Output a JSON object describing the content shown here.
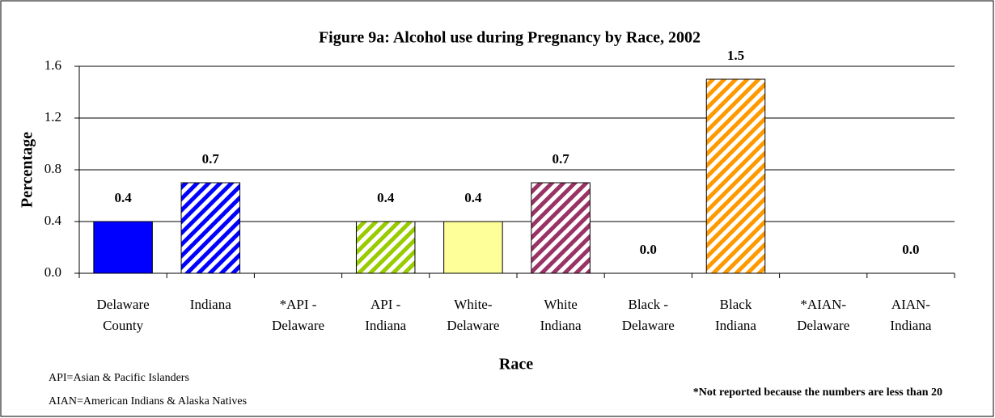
{
  "chart_data": {
    "type": "bar",
    "title": "Figure 9a:  Alcohol use during Pregnancy by Race, 2002",
    "x_label": "Race",
    "y_label": "Percentage",
    "categories": [
      [
        "Delaware",
        "County"
      ],
      [
        "Indiana"
      ],
      [
        "*API -",
        "Delaware"
      ],
      [
        "API  -",
        "Indiana"
      ],
      [
        "White-",
        "Delaware"
      ],
      [
        "White",
        "Indiana"
      ],
      [
        "Black -",
        "Delaware"
      ],
      [
        "Black",
        "Indiana"
      ],
      [
        "*AIAN-",
        "Delaware"
      ],
      [
        "AIAN-",
        "Indiana"
      ]
    ],
    "values": [
      0.4,
      0.7,
      null,
      0.4,
      0.4,
      0.7,
      0.0,
      1.5,
      null,
      0.0
    ],
    "value_labels": [
      "0.4",
      "0.7",
      null,
      "0.4",
      "0.4",
      "0.7",
      "0.0",
      "1.5",
      null,
      "0.0"
    ],
    "colors": [
      "#0000ff",
      "#0000ff",
      null,
      "#99cc00",
      "#ffff99",
      "#993366",
      null,
      "#ff9900",
      null,
      null
    ],
    "hatched": [
      false,
      true,
      false,
      true,
      false,
      true,
      false,
      true,
      false,
      false
    ],
    "ylim": [
      0,
      1.6
    ],
    "yticks": [
      {
        "value": 0,
        "label": "0.0"
      },
      0.4,
      0.8,
      1.2,
      1.6
    ],
    "grid": true,
    "notes": [
      "API=Asian & Pacific Islanders",
      "AIAN=American Indians & Alaska Natives"
    ],
    "footnote": "*Not reported because the numbers are less than 20"
  }
}
